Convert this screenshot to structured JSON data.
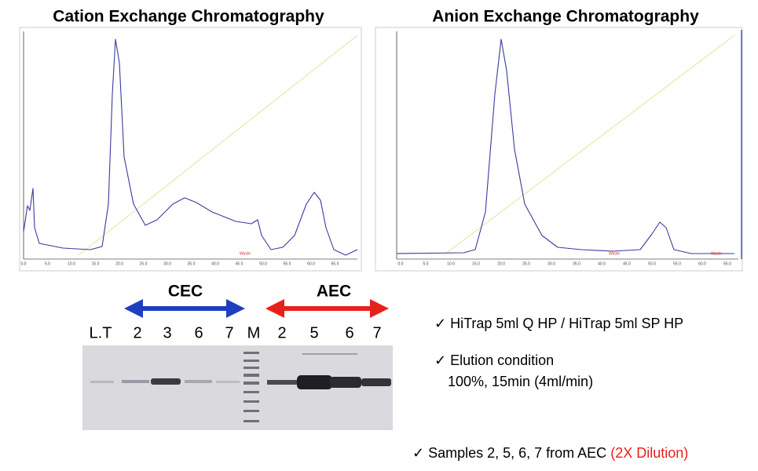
{
  "cec": {
    "title": "Cation Exchange Chromatography",
    "x_ticks": [
      "0.0",
      "5.0",
      "10.0",
      "15.0",
      "20.0",
      "25.0",
      "30.0",
      "35.0",
      "40.0",
      "45.0",
      "50.0",
      "55.0",
      "60.0",
      "65.0"
    ],
    "waste": "Waste"
  },
  "aec": {
    "title": "Anion Exchange Chromatography",
    "x_ticks": [
      "0.0",
      "5.0",
      "10.0",
      "15.0",
      "20.0",
      "25.0",
      "30.0",
      "35.0",
      "40.0",
      "45.0",
      "50.0",
      "55.0",
      "60.0",
      "65.0"
    ],
    "waste": [
      "Waste",
      "Waste"
    ]
  },
  "gel": {
    "groups": [
      "CEC",
      "AEC"
    ],
    "lanes": [
      "L.T",
      "2",
      "3",
      "6",
      "7",
      "M",
      "2",
      "5",
      "6",
      "7"
    ]
  },
  "notes": [
    "✓ HiTrap 5ml Q HP / HiTrap 5ml SP HP",
    "✓ Elution condition",
    "100%, 15min  (4ml/min)"
  ],
  "samples": {
    "text": "✓ Samples 2, 5, 6, 7 from AEC",
    "highlight": "(2X Dilution)"
  }
}
